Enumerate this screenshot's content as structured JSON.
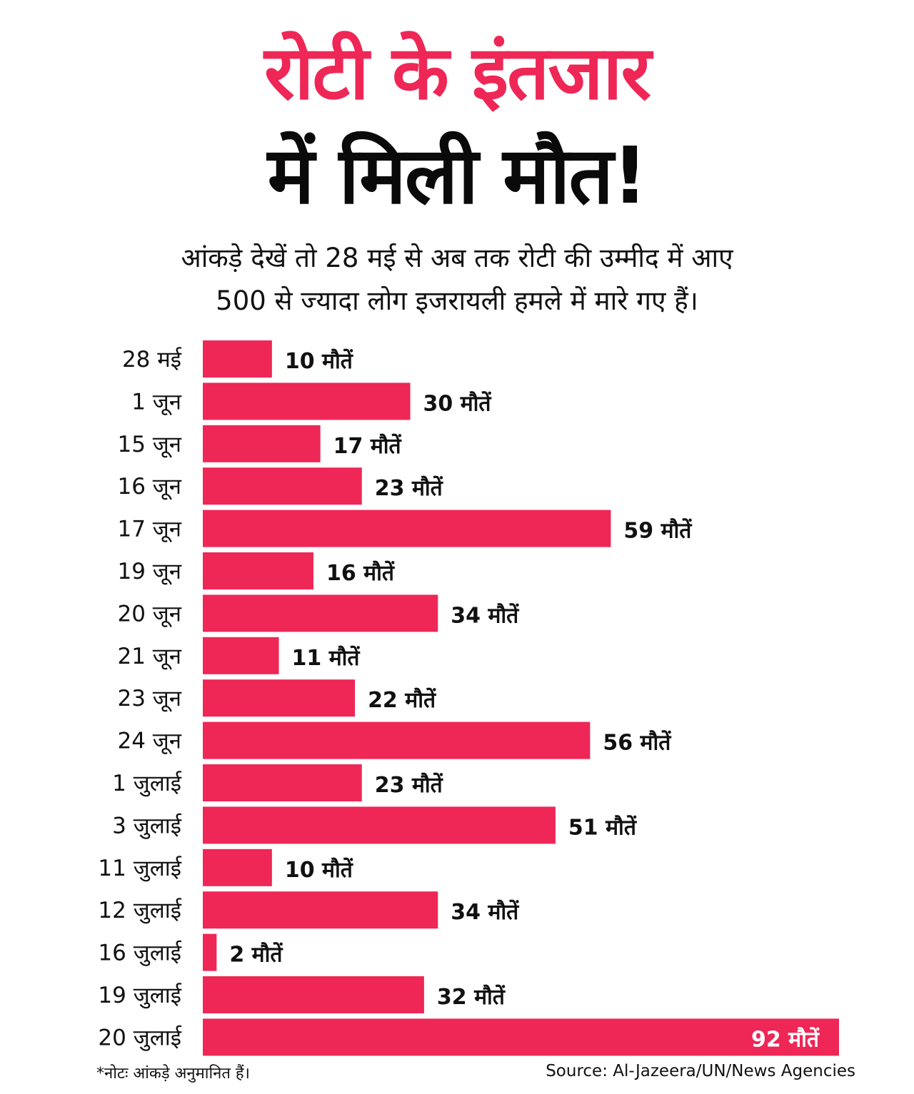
{
  "header": {
    "title_line1": "रोटी के इंतजार",
    "title_line2": "में मिली मौत!",
    "subtitle_line1": "आंकड़े देखें तो 28 मई से अब तक रोटी की उम्मीद में आए",
    "subtitle_line2": "500 से ज्यादा लोग इजरायली हमले में मारे गए हैं।"
  },
  "colors": {
    "bar": "#ee2756",
    "title_accent": "#ee2756",
    "text": "#111111"
  },
  "chart_data": {
    "type": "bar",
    "orientation": "horizontal",
    "title": "रोटी के इंतजार में मिली मौत!",
    "xlabel": "",
    "ylabel": "",
    "value_suffix": "मौतें",
    "grid": false,
    "categories": [
      "28 मई",
      "1 जून",
      "15 जून",
      "16 जून",
      "17 जून",
      "19 जून",
      "20 जून",
      "21 जून",
      "23 जून",
      "24 जून",
      "1 जुलाई",
      "3 जुलाई",
      "11 जुलाई",
      "12 जुलाई",
      "16 जुलाई",
      "19 जुलाई",
      "20 जुलाई"
    ],
    "values": [
      10,
      30,
      17,
      23,
      59,
      16,
      34,
      11,
      22,
      56,
      23,
      51,
      10,
      34,
      2,
      32,
      92
    ],
    "xlim": [
      0,
      92
    ]
  },
  "footer": {
    "note": "*नोटः आंकड़े अनुमानित हैं।",
    "source": "Source: Al-Jazeera/UN/News Agencies"
  }
}
